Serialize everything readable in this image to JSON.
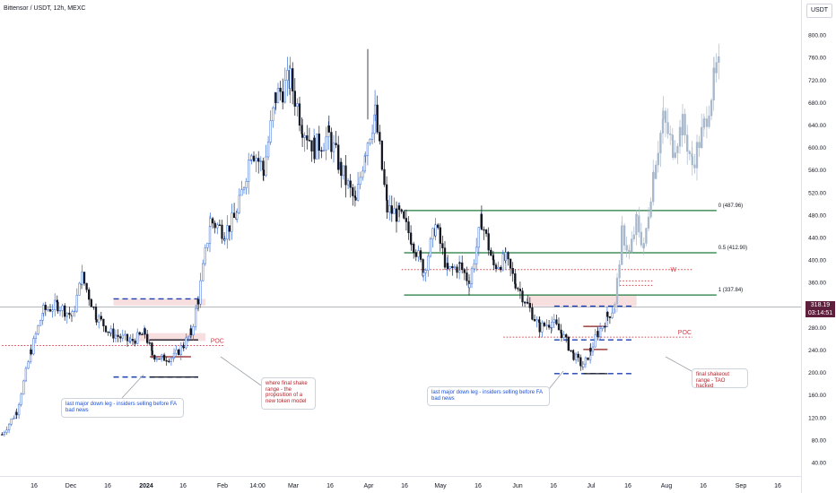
{
  "header": {
    "symbol": "Bittensor / USDT, 12h, MEXC",
    "currency": "USDT"
  },
  "price_tag": {
    "price": "318.19",
    "countdown": "03:14:51"
  },
  "colors": {
    "up": "#3a6fd8",
    "down": "#131722",
    "projection": "#a8b8cc",
    "green_line": "#1e7a3a",
    "red_dotted": "#d83b45",
    "blue_dashed": "#1a3fb0",
    "zone_fill": "#f7d9d9",
    "note_blue": "#1b4fd6",
    "note_red": "#b2242c"
  },
  "notes": {
    "insiders_1": "last major down leg - insiders selling before FA bad news",
    "shake": "where final shake range - the proposition of a new token model",
    "insiders_2": "last major down leg - insiders selling before FA bad news",
    "shakeout": "final shakeout range - TAO hacked"
  },
  "chart_data": {
    "type": "candlestick",
    "x_ticks": [
      "16",
      "Dec",
      "16",
      "2024",
      "16",
      "Feb",
      "14:00",
      "Mar",
      "16",
      "Apr",
      "16",
      "May",
      "16",
      "Jun",
      "16",
      "Jul",
      "16",
      "Aug",
      "16",
      "Sep",
      "16"
    ],
    "y_ticks": [
      40,
      80,
      120,
      160,
      200,
      240,
      280,
      320,
      360,
      400,
      440,
      480,
      520,
      560,
      600,
      640,
      680,
      720,
      760,
      800
    ],
    "ylim": [
      20,
      830
    ],
    "grid": false,
    "anchors": [
      [
        "2023-11-10",
        90
      ],
      [
        "2023-11-16",
        130
      ],
      [
        "2023-11-22",
        240
      ],
      [
        "2023-11-27",
        310
      ],
      [
        "2023-12-03",
        320
      ],
      [
        "2023-12-09",
        300
      ],
      [
        "2023-12-13",
        370
      ],
      [
        "2023-12-19",
        300
      ],
      [
        "2023-12-25",
        270
      ],
      [
        "2024-01-02",
        255
      ],
      [
        "2024-01-08",
        270
      ],
      [
        "2024-01-11",
        232
      ],
      [
        "2024-01-15",
        225
      ],
      [
        "2024-01-20",
        228
      ],
      [
        "2024-01-24",
        250
      ],
      [
        "2024-01-27",
        270
      ],
      [
        "2024-01-30",
        330
      ],
      [
        "2024-02-04",
        470
      ],
      [
        "2024-02-10",
        450
      ],
      [
        "2024-02-15",
        480
      ],
      [
        "2024-02-21",
        600
      ],
      [
        "2024-02-26",
        560
      ],
      [
        "2024-03-02",
        690
      ],
      [
        "2024-03-08",
        720
      ],
      [
        "2024-03-13",
        640
      ],
      [
        "2024-03-18",
        600
      ],
      [
        "2024-03-24",
        620
      ],
      [
        "2024-03-29",
        560
      ],
      [
        "2024-04-04",
        500
      ],
      [
        "2024-04-08",
        600
      ],
      [
        "2024-04-12",
        660
      ],
      [
        "2024-04-17",
        490
      ],
      [
        "2024-04-22",
        480
      ],
      [
        "2024-04-27",
        440
      ],
      [
        "2024-05-02",
        380
      ],
      [
        "2024-05-07",
        460
      ],
      [
        "2024-05-12",
        380
      ],
      [
        "2024-05-17",
        390
      ],
      [
        "2024-05-21",
        360
      ],
      [
        "2024-05-26",
        470
      ],
      [
        "2024-05-31",
        390
      ],
      [
        "2024-06-05",
        400
      ],
      [
        "2024-06-09",
        360
      ],
      [
        "2024-06-14",
        320
      ],
      [
        "2024-06-19",
        280
      ],
      [
        "2024-06-24",
        290
      ],
      [
        "2024-06-28",
        270
      ],
      [
        "2024-07-03",
        230
      ],
      [
        "2024-07-07",
        210
      ],
      [
        "2024-07-10",
        240
      ],
      [
        "2024-07-13",
        270
      ],
      [
        "2024-07-17",
        300
      ],
      [
        "2024-07-20",
        318
      ]
    ],
    "projection_anchors": [
      [
        "2024-07-20",
        318
      ],
      [
        "2024-07-23",
        450
      ],
      [
        "2024-07-26",
        410
      ],
      [
        "2024-07-29",
        470
      ],
      [
        "2024-08-01",
        420
      ],
      [
        "2024-08-05",
        560
      ],
      [
        "2024-08-09",
        650
      ],
      [
        "2024-08-13",
        600
      ],
      [
        "2024-08-17",
        640
      ],
      [
        "2024-08-21",
        570
      ],
      [
        "2024-08-26",
        640
      ],
      [
        "2024-08-30",
        720
      ],
      [
        "2024-09-01",
        740
      ]
    ],
    "fibonacci": [
      {
        "level": "0",
        "price": 487.96,
        "label": "0 (487.96)"
      },
      {
        "level": "0.5",
        "price": 412.9,
        "label": "0.5 (412.90)"
      },
      {
        "level": "1",
        "price": 337.84,
        "label": "1 (337.84)"
      }
    ],
    "horizontal_levels": [
      {
        "style": "red-dotted",
        "price": 248,
        "from": "2023-11-10",
        "to": "2024-02-10",
        "label": "POC"
      },
      {
        "style": "red-dotted",
        "price": 383,
        "from": "2024-04-23",
        "to": "2024-08-21",
        "label": ""
      },
      {
        "style": "red-dotted",
        "price": 263,
        "from": "2024-06-04",
        "to": "2024-08-21",
        "label": "POC"
      },
      {
        "style": "red-dotted",
        "price": 363,
        "from": "2024-07-22",
        "to": "2024-08-05",
        "label": ""
      },
      {
        "style": "red-dotted",
        "price": 355,
        "from": "2024-07-22",
        "to": "2024-08-05",
        "label": ""
      },
      {
        "style": "blue-dashed",
        "price": 331,
        "from": "2023-12-26",
        "to": "2024-01-30",
        "label": ""
      },
      {
        "style": "blue-dashed",
        "price": 192,
        "from": "2023-12-26",
        "to": "2024-01-30",
        "label": ""
      },
      {
        "style": "blue-dashed",
        "price": 318,
        "from": "2024-06-25",
        "to": "2024-07-28",
        "label": ""
      },
      {
        "style": "blue-dashed",
        "price": 198,
        "from": "2024-06-25",
        "to": "2024-07-28",
        "label": ""
      },
      {
        "style": "blue-dashed",
        "price": 258,
        "from": "2024-06-25",
        "to": "2024-07-28",
        "label": ""
      },
      {
        "style": "solid-black",
        "price": 258,
        "from": "2024-01-10",
        "to": "2024-01-30",
        "label": ""
      },
      {
        "style": "solid-darkred",
        "price": 228,
        "from": "2024-01-10",
        "to": "2024-01-27",
        "label": ""
      },
      {
        "style": "solid-black",
        "price": 192,
        "from": "2024-01-10",
        "to": "2024-01-30",
        "label": ""
      },
      {
        "style": "solid-darkred",
        "price": 282,
        "from": "2024-07-07",
        "to": "2024-07-17",
        "label": ""
      },
      {
        "style": "solid-darkred",
        "price": 241,
        "from": "2024-07-07",
        "to": "2024-07-17",
        "label": ""
      },
      {
        "style": "solid-black",
        "price": 198,
        "from": "2024-07-07",
        "to": "2024-07-17",
        "label": ""
      }
    ],
    "zones": [
      {
        "from": "2023-12-26",
        "to": "2024-02-02",
        "low": 319,
        "high": 331
      },
      {
        "from": "2024-01-04",
        "to": "2024-02-02",
        "low": 256,
        "high": 270
      },
      {
        "from": "2024-06-14",
        "to": "2024-07-29",
        "low": 318,
        "high": 337
      }
    ],
    "marker": {
      "label": "W",
      "price": 370
    }
  }
}
